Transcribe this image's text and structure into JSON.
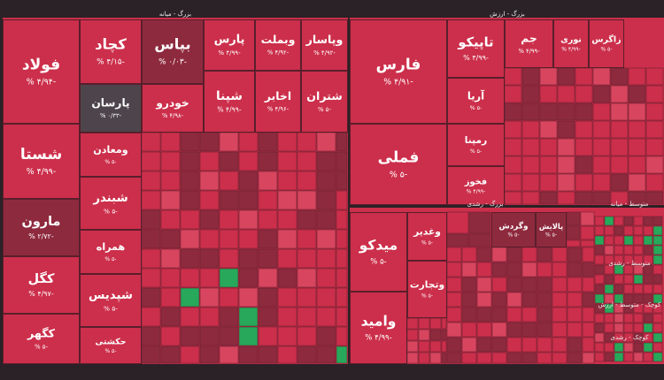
{
  "sections": [
    {
      "title": "بزرگ - میانه"
    },
    {
      "title": "بزرگ - ارزش"
    },
    {
      "title": "بزرگ - رشدی"
    },
    {
      "title": "متوسط - میانه"
    },
    {
      "title": "متوسط - رشدی"
    },
    {
      "title": "کوچک - متوسط - ارزش"
    },
    {
      "title": "کوچک - رشدی"
    }
  ],
  "cells": [
    {
      "label": "فولاد",
      "change": "-۴/۹۴ %"
    },
    {
      "label": "شستا",
      "change": "-۴/۹۹ %"
    },
    {
      "label": "مارون",
      "change": "-۲/۷۲ %"
    },
    {
      "label": "کگل",
      "change": "-۴/۹۷ %"
    },
    {
      "label": "کگهر",
      "change": "-۵ %"
    },
    {
      "label": "کچاد",
      "change": "-۴/۱۵ %"
    },
    {
      "label": "پارسان",
      "change": "-۰/۳۳ %"
    },
    {
      "label": "بپاس",
      "change": "-۰/۰۳ %"
    },
    {
      "label": "پارس",
      "change": "-۴/۹۹ %"
    },
    {
      "label": "وبملت",
      "change": "-۴/۹۲ %"
    },
    {
      "label": "وپاسار",
      "change": "-۴/۹۲ %"
    },
    {
      "label": "خودرو",
      "change": "-۴/۹۸ %"
    },
    {
      "label": "شپنا",
      "change": "-۴/۹۹ %"
    },
    {
      "label": "اخابر",
      "change": "-۴/۹۶ %"
    },
    {
      "label": "شتران",
      "change": "-۵ %"
    },
    {
      "label": "ومعادن",
      "change": "-۵ %"
    },
    {
      "label": "شبندر",
      "change": "-۵ %"
    },
    {
      "label": "همراه",
      "change": "-۵ %"
    },
    {
      "label": "شپدیس",
      "change": "-۵ %"
    },
    {
      "label": "حکشتی",
      "change": "-۵ %"
    },
    {
      "label": "فارس",
      "change": "-۴/۹۱ %"
    },
    {
      "label": "فملی",
      "change": "-۵ %"
    },
    {
      "label": "تاپیکو",
      "change": "-۴/۹۹ %"
    },
    {
      "label": "آریا",
      "change": "-۵ %"
    },
    {
      "label": "رمپنا",
      "change": "-۵ %"
    },
    {
      "label": "فخوز",
      "change": "-۴/۹۹ %"
    },
    {
      "label": "جم",
      "change": "-۴/۹۹ %"
    },
    {
      "label": "نوری",
      "change": "-۴/۹۹ %"
    },
    {
      "label": "زاگرس",
      "change": "-۵ %"
    },
    {
      "label": "میدکو",
      "change": "-۵ %"
    },
    {
      "label": "وامید",
      "change": "-۴/۹۹ %"
    },
    {
      "label": "وغدیر",
      "change": "-۵ %"
    },
    {
      "label": "وتجارت",
      "change": "-۵ %"
    },
    {
      "label": "وگردش",
      "change": "-۵ %"
    },
    {
      "label": "پالایش",
      "change": "-۵ %"
    }
  ]
}
